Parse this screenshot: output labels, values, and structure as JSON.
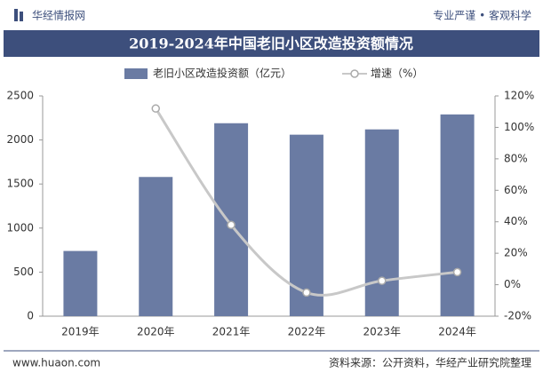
{
  "header": {
    "brand": "华经情报网",
    "slogan": "专业严谨 • 客观科学"
  },
  "footer": {
    "website": "www.huaon.com",
    "source": "资料来源：公开资料，华经产业研究院整理"
  },
  "chart_data": {
    "type": "bar-line",
    "title": "2019-2024年中国老旧小区改造投资额情况",
    "categories": [
      "2019年",
      "2020年",
      "2021年",
      "2022年",
      "2023年",
      "2024年"
    ],
    "series": [
      {
        "name": "老旧小区改造投资额（亿元）",
        "type": "bar",
        "color": "#6a7ba3",
        "values": [
          740,
          1580,
          2190,
          2060,
          2120,
          2290
        ]
      },
      {
        "name": "增速（%）",
        "type": "line",
        "color": "#c8c8c8",
        "axis": "y2",
        "values": [
          null,
          112,
          38,
          -5,
          2.5,
          8
        ]
      }
    ],
    "ylim": [
      0,
      2500
    ],
    "yticks": [
      0,
      500,
      1000,
      1500,
      2000,
      2500
    ],
    "y2lim": [
      -20,
      120
    ],
    "y2ticks": [
      {
        "value": -20,
        "label": "-20%"
      },
      {
        "value": 0,
        "label": "0%"
      },
      {
        "value": 20,
        "label": "20%"
      },
      {
        "value": 40,
        "label": "40%"
      },
      {
        "value": 60,
        "label": "60%"
      },
      {
        "value": 80,
        "label": "80%"
      },
      {
        "value": 100,
        "label": "100%"
      },
      {
        "value": 120,
        "label": "120%"
      }
    ],
    "legend": "top"
  }
}
